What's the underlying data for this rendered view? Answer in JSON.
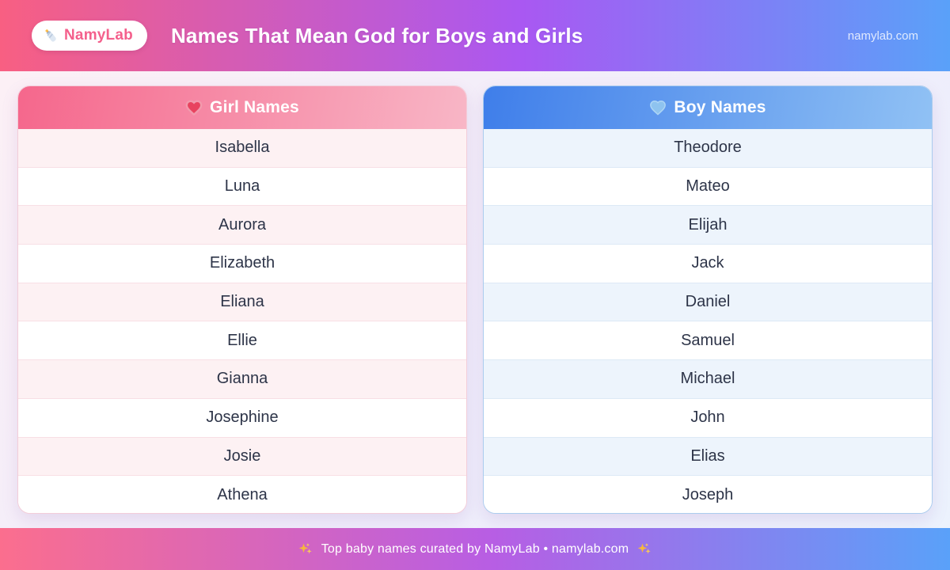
{
  "header": {
    "logo_text": "NamyLab",
    "logo_icon": "baby-bottle-icon",
    "title": "Names That Mean God for Boys and Girls",
    "site": "namylab.com"
  },
  "columns": [
    {
      "title": "Girl Names",
      "icon": "heart-icon",
      "names": [
        "Isabella",
        "Luna",
        "Aurora",
        "Elizabeth",
        "Eliana",
        "Ellie",
        "Gianna",
        "Josephine",
        "Josie",
        "Athena"
      ]
    },
    {
      "title": "Boy Names",
      "icon": "heart-icon",
      "names": [
        "Theodore",
        "Mateo",
        "Elijah",
        "Jack",
        "Daniel",
        "Samuel",
        "Michael",
        "John",
        "Elias",
        "Joseph"
      ]
    }
  ],
  "footer": {
    "text": "Top baby names curated by NamyLab • namylab.com",
    "sparkle_icon": "sparkles-icon"
  },
  "colors": {
    "banner_gradient": [
      "#f85f82",
      "#a958f2",
      "#5aa1f9"
    ],
    "page_bg_gradient": [
      "#fdf0f5",
      "#f0edfb",
      "#ebf2fd"
    ],
    "girl_header_gradient": [
      "#f5678c",
      "#f8b6c6"
    ],
    "boy_header_gradient": [
      "#3f7eea",
      "#90c1f4"
    ],
    "girl_row_alt": "#fdf1f3",
    "boy_row_alt": "#edf4fc",
    "girl_border": "#f3cdd9",
    "boy_border": "#abccee",
    "girl_heart": "#e8435f",
    "boy_heart": "#8ec3ef",
    "logo_text_color": "#f4608c",
    "name_text_color": "#2d3448",
    "sparkle_color": "#f6b73c"
  }
}
